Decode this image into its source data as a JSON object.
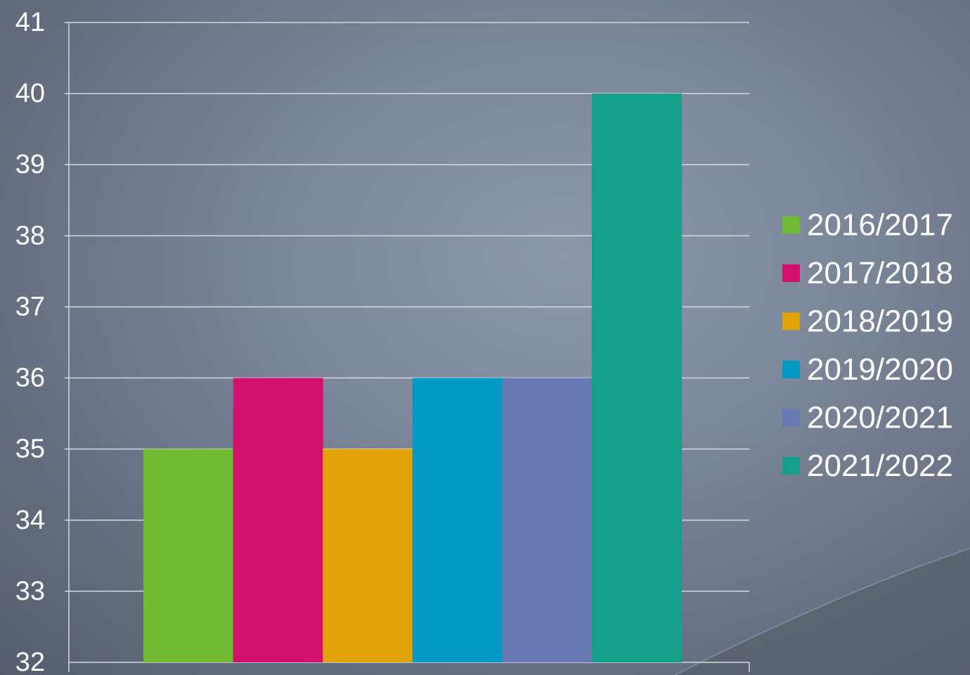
{
  "chart_data": {
    "type": "bar",
    "title": "",
    "xlabel": "",
    "ylabel": "",
    "ylim": [
      32,
      41
    ],
    "y_ticks": [
      32,
      33,
      34,
      35,
      36,
      37,
      38,
      39,
      40,
      41
    ],
    "grid": true,
    "legend_position": "right",
    "series": [
      {
        "name": "2016/2017",
        "value": 35,
        "color": "#72b934"
      },
      {
        "name": "2017/2018",
        "value": 36,
        "color": "#d2106d"
      },
      {
        "name": "2018/2019",
        "value": 35,
        "color": "#e0a209"
      },
      {
        "name": "2019/2020",
        "value": 36,
        "color": "#0199c6"
      },
      {
        "name": "2020/2021",
        "value": 36,
        "color": "#6679b3"
      },
      {
        "name": "2021/2022",
        "value": 40,
        "color": "#16a08b"
      }
    ]
  }
}
